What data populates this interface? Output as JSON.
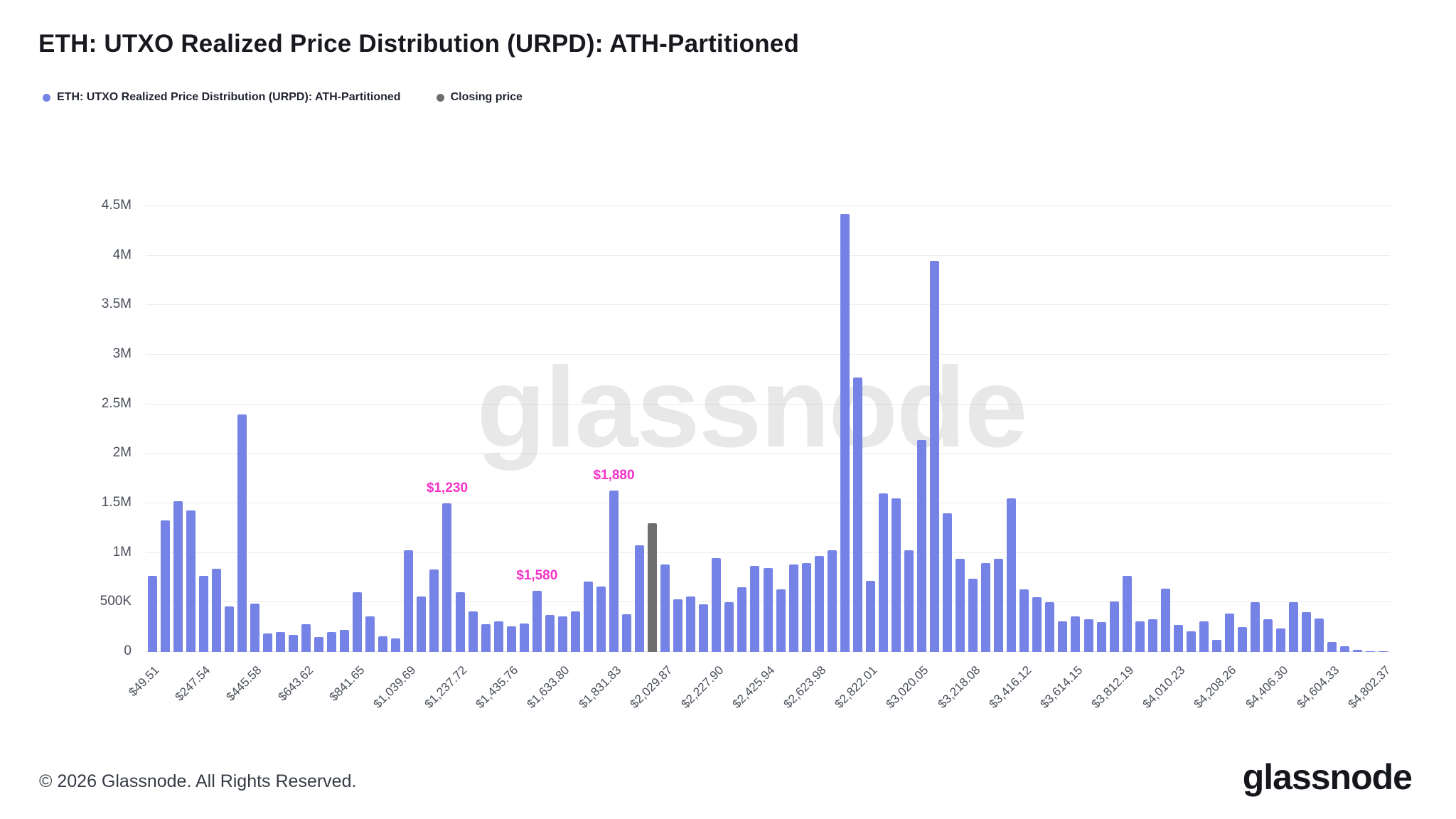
{
  "title": "ETH: UTXO Realized Price Distribution (URPD): ATH-Partitioned",
  "watermark": "glassnode",
  "legend": [
    {
      "label": "ETH: UTXO Realized Price Distribution (URPD): ATH-Partitioned",
      "color": "#7583e6"
    },
    {
      "label": "Closing price",
      "color": "#6e6e6e"
    }
  ],
  "footer": {
    "copyright": "© 2026 Glassnode. All Rights Reserved.",
    "brand": "glassnode"
  },
  "chart_data": {
    "type": "bar",
    "title": "ETH: UTXO Realized Price Distribution (URPD): ATH-Partitioned",
    "grid": true,
    "legend_position": "top-left",
    "ylim": [
      0,
      4500000
    ],
    "ytick_values": [
      0,
      500000,
      1000000,
      1500000,
      2000000,
      2500000,
      3000000,
      3500000,
      4000000,
      4500000
    ],
    "ytick_labels": [
      "0",
      "500K",
      "1M",
      "1.5M",
      "2M",
      "2.5M",
      "3M",
      "3.5M",
      "4M",
      "4.5M"
    ],
    "x_tick_every": 4,
    "x_tick_labels": [
      "$49.51",
      "$247.54",
      "$445.58",
      "$643.62",
      "$841.65",
      "$1,039.69",
      "$1,237.72",
      "$1,435.76",
      "$1,633.80",
      "$1,831.83",
      "$2,029.87",
      "$2,227.90",
      "$2,425.94",
      "$2,623.98",
      "$2,822.01",
      "$3,020.05",
      "$3,218.08",
      "$3,416.12",
      "$3,614.15",
      "$3,812.19",
      "$4,010.23",
      "$4,208.26",
      "$4,406.30",
      "$4,604.33",
      "$4,802.37"
    ],
    "bar_color": "#7583e6",
    "closing_bar_color": "#6e6e6e",
    "closing_bar_index": 39,
    "annotation_color": "#f631c8",
    "annotations": [
      {
        "index": 23,
        "text": "$1,230"
      },
      {
        "index": 30,
        "text": "$1,580"
      },
      {
        "index": 36,
        "text": "$1,880"
      }
    ],
    "values": [
      770000,
      1330000,
      1520000,
      1430000,
      770000,
      840000,
      460000,
      2400000,
      490000,
      190000,
      200000,
      170000,
      280000,
      150000,
      200000,
      220000,
      600000,
      360000,
      160000,
      140000,
      1030000,
      560000,
      830000,
      1500000,
      600000,
      410000,
      280000,
      310000,
      260000,
      290000,
      620000,
      370000,
      360000,
      410000,
      710000,
      660000,
      1630000,
      380000,
      1080000,
      1300000,
      880000,
      530000,
      560000,
      480000,
      950000,
      500000,
      650000,
      870000,
      850000,
      630000,
      880000,
      900000,
      970000,
      1030000,
      4420000,
      2770000,
      720000,
      1600000,
      1550000,
      1030000,
      2140000,
      3950000,
      1400000,
      940000,
      740000,
      900000,
      940000,
      1550000,
      630000,
      550000,
      500000,
      310000,
      360000,
      330000,
      300000,
      510000,
      770000,
      310000,
      330000,
      640000,
      270000,
      210000,
      310000,
      120000,
      390000,
      250000,
      500000,
      330000,
      240000,
      500000,
      400000,
      340000,
      100000,
      60000,
      20000,
      10000,
      10000
    ]
  }
}
